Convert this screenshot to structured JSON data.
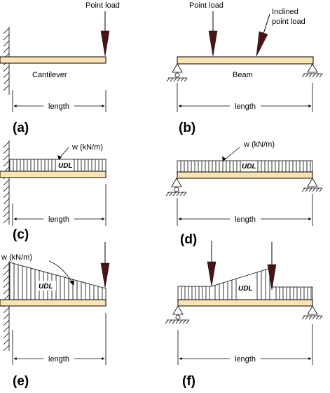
{
  "panels": {
    "a": {
      "caption": "(a)",
      "point_load": "Point load",
      "member": "Cantilever",
      "length": "length"
    },
    "b": {
      "caption": "(b)",
      "point_load": "Point load",
      "inclined_line1": "Inclined",
      "inclined_line2": "point load",
      "member": "Beam",
      "length": "length"
    },
    "c": {
      "caption": "(c)",
      "load_intensity": "w  (kN/m)",
      "udl": "UDL",
      "length": "length"
    },
    "d": {
      "caption": "(d)",
      "load_intensity": "w  (kN/m)",
      "udl": "UDL",
      "length": "length"
    },
    "e": {
      "caption": "(e)",
      "load_intensity": "w (kN/m)",
      "udl": "UDL",
      "length": "length"
    },
    "f": {
      "caption": "(f)",
      "udl": "UDL",
      "length": "length"
    }
  },
  "colors": {
    "beam_fill": "#fbe4b2",
    "arrow_fill": "#4a1414",
    "line": "#000000"
  }
}
